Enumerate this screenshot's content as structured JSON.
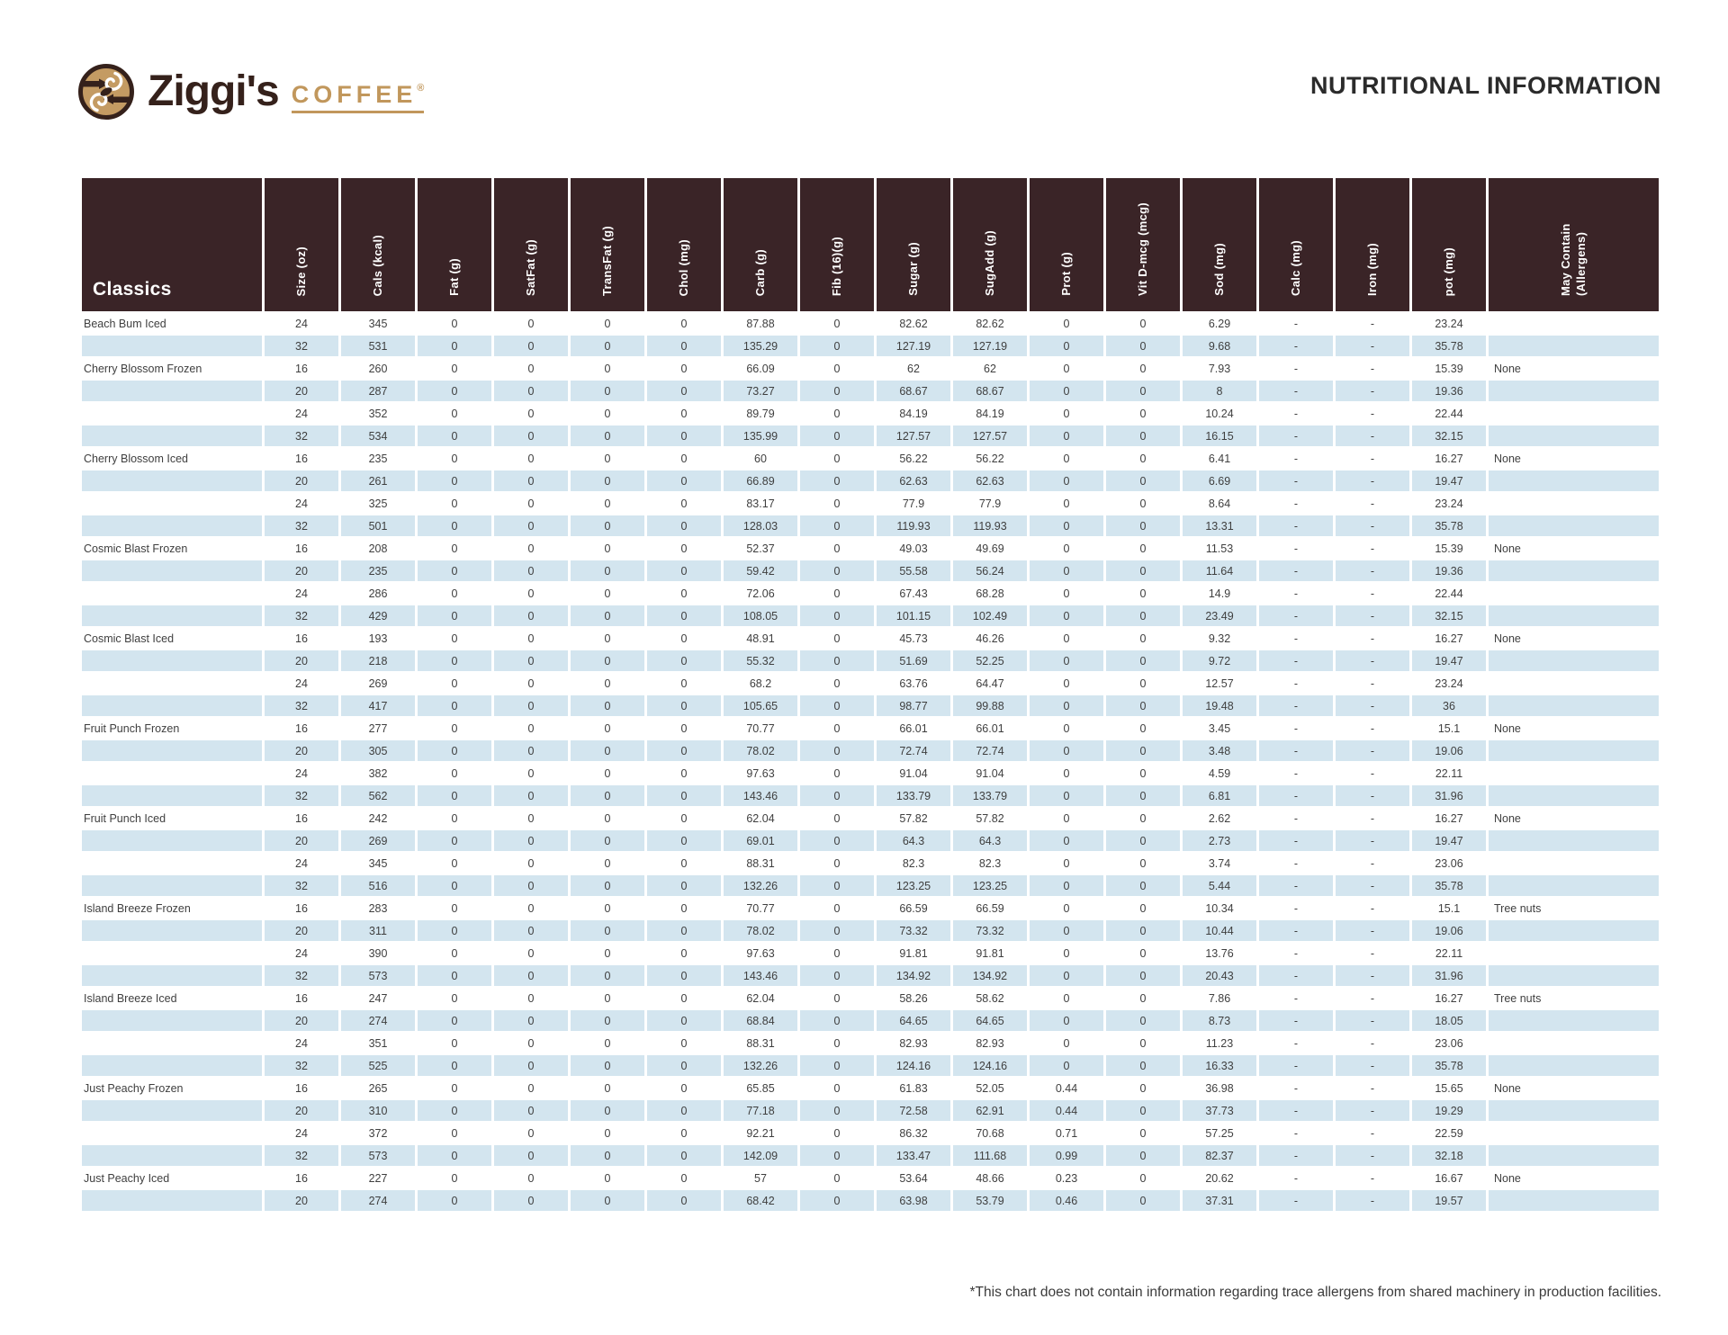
{
  "page": {
    "title": "NUTRITIONAL INFORMATION",
    "footnote": "*This chart does not contain information regarding trace allergens from shared machinery in production facilities."
  },
  "brand": {
    "name": "Ziggi's",
    "word": "COFFEE",
    "registered": "®",
    "colors": {
      "brown": "#35211B",
      "tan": "#C1975C"
    }
  },
  "table": {
    "group_header": "Classics",
    "colors": {
      "header_bg": "#3A2427",
      "row_alt_bg": "#D3E5EF"
    },
    "columns": [
      "Size (oz)",
      "Cals (kcal)",
      "Fat (g)",
      "SatFat (g)",
      "TransFat (g)",
      "Chol (mg)",
      "Carb (g)",
      "Fib (16)(g)",
      "Sugar (g)",
      "SugAdd (g)",
      "Prot (g)",
      "Vit D-mcg (mcg)",
      "Sod (mg)",
      "Calc (mg)",
      "Iron (mg)",
      "pot (mg)",
      "May Contain (Allergens)"
    ],
    "rows": [
      {
        "name": "Beach Bum Iced",
        "values": [
          "24",
          "345",
          "0",
          "0",
          "0",
          "0",
          "87.88",
          "0",
          "82.62",
          "82.62",
          "0",
          "0",
          "6.29",
          "-",
          "-",
          "23.24",
          ""
        ]
      },
      {
        "name": "",
        "values": [
          "32",
          "531",
          "0",
          "0",
          "0",
          "0",
          "135.29",
          "0",
          "127.19",
          "127.19",
          "0",
          "0",
          "9.68",
          "-",
          "-",
          "35.78",
          ""
        ]
      },
      {
        "name": "Cherry Blossom Frozen",
        "values": [
          "16",
          "260",
          "0",
          "0",
          "0",
          "0",
          "66.09",
          "0",
          "62",
          "62",
          "0",
          "0",
          "7.93",
          "-",
          "-",
          "15.39",
          "None"
        ]
      },
      {
        "name": "",
        "values": [
          "20",
          "287",
          "0",
          "0",
          "0",
          "0",
          "73.27",
          "0",
          "68.67",
          "68.67",
          "0",
          "0",
          "8",
          "-",
          "-",
          "19.36",
          ""
        ]
      },
      {
        "name": "",
        "values": [
          "24",
          "352",
          "0",
          "0",
          "0",
          "0",
          "89.79",
          "0",
          "84.19",
          "84.19",
          "0",
          "0",
          "10.24",
          "-",
          "-",
          "22.44",
          ""
        ]
      },
      {
        "name": "",
        "values": [
          "32",
          "534",
          "0",
          "0",
          "0",
          "0",
          "135.99",
          "0",
          "127.57",
          "127.57",
          "0",
          "0",
          "16.15",
          "-",
          "-",
          "32.15",
          ""
        ]
      },
      {
        "name": "Cherry Blossom Iced",
        "values": [
          "16",
          "235",
          "0",
          "0",
          "0",
          "0",
          "60",
          "0",
          "56.22",
          "56.22",
          "0",
          "0",
          "6.41",
          "-",
          "-",
          "16.27",
          "None"
        ]
      },
      {
        "name": "",
        "values": [
          "20",
          "261",
          "0",
          "0",
          "0",
          "0",
          "66.89",
          "0",
          "62.63",
          "62.63",
          "0",
          "0",
          "6.69",
          "-",
          "-",
          "19.47",
          ""
        ]
      },
      {
        "name": "",
        "values": [
          "24",
          "325",
          "0",
          "0",
          "0",
          "0",
          "83.17",
          "0",
          "77.9",
          "77.9",
          "0",
          "0",
          "8.64",
          "-",
          "-",
          "23.24",
          ""
        ]
      },
      {
        "name": "",
        "values": [
          "32",
          "501",
          "0",
          "0",
          "0",
          "0",
          "128.03",
          "0",
          "119.93",
          "119.93",
          "0",
          "0",
          "13.31",
          "-",
          "-",
          "35.78",
          ""
        ]
      },
      {
        "name": "Cosmic Blast Frozen",
        "values": [
          "16",
          "208",
          "0",
          "0",
          "0",
          "0",
          "52.37",
          "0",
          "49.03",
          "49.69",
          "0",
          "0",
          "11.53",
          "-",
          "-",
          "15.39",
          "None"
        ]
      },
      {
        "name": "",
        "values": [
          "20",
          "235",
          "0",
          "0",
          "0",
          "0",
          "59.42",
          "0",
          "55.58",
          "56.24",
          "0",
          "0",
          "11.64",
          "-",
          "-",
          "19.36",
          ""
        ]
      },
      {
        "name": "",
        "values": [
          "24",
          "286",
          "0",
          "0",
          "0",
          "0",
          "72.06",
          "0",
          "67.43",
          "68.28",
          "0",
          "0",
          "14.9",
          "-",
          "-",
          "22.44",
          ""
        ]
      },
      {
        "name": "",
        "values": [
          "32",
          "429",
          "0",
          "0",
          "0",
          "0",
          "108.05",
          "0",
          "101.15",
          "102.49",
          "0",
          "0",
          "23.49",
          "-",
          "-",
          "32.15",
          ""
        ]
      },
      {
        "name": "Cosmic Blast Iced",
        "values": [
          "16",
          "193",
          "0",
          "0",
          "0",
          "0",
          "48.91",
          "0",
          "45.73",
          "46.26",
          "0",
          "0",
          "9.32",
          "-",
          "-",
          "16.27",
          "None"
        ]
      },
      {
        "name": "",
        "values": [
          "20",
          "218",
          "0",
          "0",
          "0",
          "0",
          "55.32",
          "0",
          "51.69",
          "52.25",
          "0",
          "0",
          "9.72",
          "-",
          "-",
          "19.47",
          ""
        ]
      },
      {
        "name": "",
        "values": [
          "24",
          "269",
          "0",
          "0",
          "0",
          "0",
          "68.2",
          "0",
          "63.76",
          "64.47",
          "0",
          "0",
          "12.57",
          "-",
          "-",
          "23.24",
          ""
        ]
      },
      {
        "name": "",
        "values": [
          "32",
          "417",
          "0",
          "0",
          "0",
          "0",
          "105.65",
          "0",
          "98.77",
          "99.88",
          "0",
          "0",
          "19.48",
          "-",
          "-",
          "36",
          ""
        ]
      },
      {
        "name": "Fruit Punch Frozen",
        "values": [
          "16",
          "277",
          "0",
          "0",
          "0",
          "0",
          "70.77",
          "0",
          "66.01",
          "66.01",
          "0",
          "0",
          "3.45",
          "-",
          "-",
          "15.1",
          "None"
        ]
      },
      {
        "name": "",
        "values": [
          "20",
          "305",
          "0",
          "0",
          "0",
          "0",
          "78.02",
          "0",
          "72.74",
          "72.74",
          "0",
          "0",
          "3.48",
          "-",
          "-",
          "19.06",
          ""
        ]
      },
      {
        "name": "",
        "values": [
          "24",
          "382",
          "0",
          "0",
          "0",
          "0",
          "97.63",
          "0",
          "91.04",
          "91.04",
          "0",
          "0",
          "4.59",
          "-",
          "-",
          "22.11",
          ""
        ]
      },
      {
        "name": "",
        "values": [
          "32",
          "562",
          "0",
          "0",
          "0",
          "0",
          "143.46",
          "0",
          "133.79",
          "133.79",
          "0",
          "0",
          "6.81",
          "-",
          "-",
          "31.96",
          ""
        ]
      },
      {
        "name": "Fruit Punch Iced",
        "values": [
          "16",
          "242",
          "0",
          "0",
          "0",
          "0",
          "62.04",
          "0",
          "57.82",
          "57.82",
          "0",
          "0",
          "2.62",
          "-",
          "-",
          "16.27",
          "None"
        ]
      },
      {
        "name": "",
        "values": [
          "20",
          "269",
          "0",
          "0",
          "0",
          "0",
          "69.01",
          "0",
          "64.3",
          "64.3",
          "0",
          "0",
          "2.73",
          "-",
          "-",
          "19.47",
          ""
        ]
      },
      {
        "name": "",
        "values": [
          "24",
          "345",
          "0",
          "0",
          "0",
          "0",
          "88.31",
          "0",
          "82.3",
          "82.3",
          "0",
          "0",
          "3.74",
          "-",
          "-",
          "23.06",
          ""
        ]
      },
      {
        "name": "",
        "values": [
          "32",
          "516",
          "0",
          "0",
          "0",
          "0",
          "132.26",
          "0",
          "123.25",
          "123.25",
          "0",
          "0",
          "5.44",
          "-",
          "-",
          "35.78",
          ""
        ]
      },
      {
        "name": "Island Breeze Frozen",
        "values": [
          "16",
          "283",
          "0",
          "0",
          "0",
          "0",
          "70.77",
          "0",
          "66.59",
          "66.59",
          "0",
          "0",
          "10.34",
          "-",
          "-",
          "15.1",
          "Tree nuts"
        ]
      },
      {
        "name": "",
        "values": [
          "20",
          "311",
          "0",
          "0",
          "0",
          "0",
          "78.02",
          "0",
          "73.32",
          "73.32",
          "0",
          "0",
          "10.44",
          "-",
          "-",
          "19.06",
          ""
        ]
      },
      {
        "name": "",
        "values": [
          "24",
          "390",
          "0",
          "0",
          "0",
          "0",
          "97.63",
          "0",
          "91.81",
          "91.81",
          "0",
          "0",
          "13.76",
          "-",
          "-",
          "22.11",
          ""
        ]
      },
      {
        "name": "",
        "values": [
          "32",
          "573",
          "0",
          "0",
          "0",
          "0",
          "143.46",
          "0",
          "134.92",
          "134.92",
          "0",
          "0",
          "20.43",
          "-",
          "-",
          "31.96",
          ""
        ]
      },
      {
        "name": "Island Breeze Iced",
        "values": [
          "16",
          "247",
          "0",
          "0",
          "0",
          "0",
          "62.04",
          "0",
          "58.26",
          "58.62",
          "0",
          "0",
          "7.86",
          "-",
          "-",
          "16.27",
          "Tree nuts"
        ]
      },
      {
        "name": "",
        "values": [
          "20",
          "274",
          "0",
          "0",
          "0",
          "0",
          "68.84",
          "0",
          "64.65",
          "64.65",
          "0",
          "0",
          "8.73",
          "-",
          "-",
          "18.05",
          ""
        ]
      },
      {
        "name": "",
        "values": [
          "24",
          "351",
          "0",
          "0",
          "0",
          "0",
          "88.31",
          "0",
          "82.93",
          "82.93",
          "0",
          "0",
          "11.23",
          "-",
          "-",
          "23.06",
          ""
        ]
      },
      {
        "name": "",
        "values": [
          "32",
          "525",
          "0",
          "0",
          "0",
          "0",
          "132.26",
          "0",
          "124.16",
          "124.16",
          "0",
          "0",
          "16.33",
          "-",
          "-",
          "35.78",
          ""
        ]
      },
      {
        "name": "Just Peachy Frozen",
        "values": [
          "16",
          "265",
          "0",
          "0",
          "0",
          "0",
          "65.85",
          "0",
          "61.83",
          "52.05",
          "0.44",
          "0",
          "36.98",
          "-",
          "-",
          "15.65",
          "None"
        ]
      },
      {
        "name": "",
        "values": [
          "20",
          "310",
          "0",
          "0",
          "0",
          "0",
          "77.18",
          "0",
          "72.58",
          "62.91",
          "0.44",
          "0",
          "37.73",
          "-",
          "-",
          "19.29",
          ""
        ]
      },
      {
        "name": "",
        "values": [
          "24",
          "372",
          "0",
          "0",
          "0",
          "0",
          "92.21",
          "0",
          "86.32",
          "70.68",
          "0.71",
          "0",
          "57.25",
          "-",
          "-",
          "22.59",
          ""
        ]
      },
      {
        "name": "",
        "values": [
          "32",
          "573",
          "0",
          "0",
          "0",
          "0",
          "142.09",
          "0",
          "133.47",
          "111.68",
          "0.99",
          "0",
          "82.37",
          "-",
          "-",
          "32.18",
          ""
        ]
      },
      {
        "name": "Just Peachy Iced",
        "values": [
          "16",
          "227",
          "0",
          "0",
          "0",
          "0",
          "57",
          "0",
          "53.64",
          "48.66",
          "0.23",
          "0",
          "20.62",
          "-",
          "-",
          "16.67",
          "None"
        ]
      },
      {
        "name": "",
        "values": [
          "20",
          "274",
          "0",
          "0",
          "0",
          "0",
          "68.42",
          "0",
          "63.98",
          "53.79",
          "0.46",
          "0",
          "37.31",
          "-",
          "-",
          "19.57",
          ""
        ]
      }
    ]
  }
}
